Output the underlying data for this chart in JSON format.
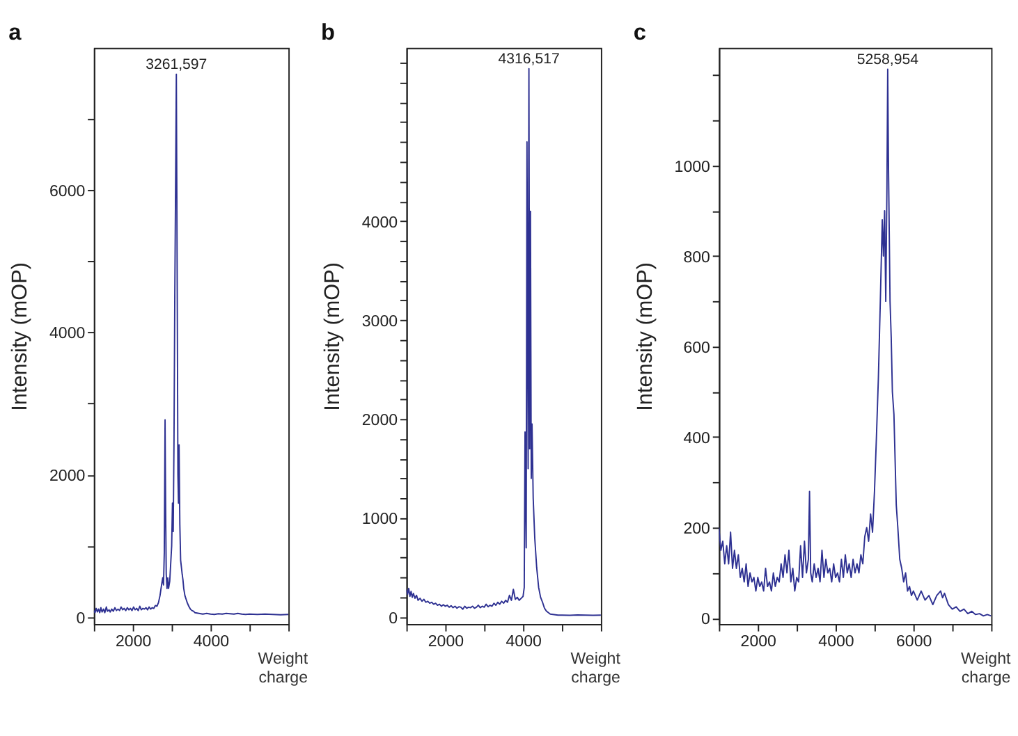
{
  "chart_data": [
    {
      "type": "line",
      "title": "a",
      "xlabel": "Weight charge",
      "ylabel": "Intensity (mOP)",
      "xlim": [
        1000,
        6000
      ],
      "xticks": [
        {
          "value": 1000,
          "label": null
        },
        2000,
        {
          "value": 3000,
          "label": null
        },
        4000,
        {
          "value": 5000,
          "label": null
        },
        {
          "value": 6000,
          "label": null
        }
      ],
      "ylim": [
        -100,
        8000
      ],
      "yticks": [
        0,
        {
          "value": 1000,
          "label": null
        },
        2000,
        {
          "value": 3000,
          "label": null
        },
        4000,
        {
          "value": 5000,
          "label": null
        },
        6000,
        {
          "value": 7000,
          "label": null
        }
      ],
      "annotations": [
        {
          "text": "3261,597",
          "x": 3120,
          "y": 7630
        }
      ],
      "series": [
        {
          "color": "#2e3192",
          "x": [
            1000,
            1030,
            1060,
            1090,
            1120,
            1150,
            1180,
            1210,
            1250,
            1280,
            1320,
            1350,
            1390,
            1420,
            1460,
            1500,
            1540,
            1580,
            1620,
            1660,
            1700,
            1740,
            1780,
            1820,
            1860,
            1900,
            1940,
            1980,
            2020,
            2060,
            2100,
            2140,
            2180,
            2220,
            2260,
            2300,
            2340,
            2380,
            2420,
            2460,
            2500,
            2540,
            2580,
            2620,
            2660,
            2700,
            2740,
            2770,
            2790,
            2810,
            2830,
            2845,
            2860,
            2880,
            2900,
            2920,
            2950,
            2980,
            3000,
            3020,
            3040,
            3060,
            3080,
            3100,
            3120,
            3140,
            3160,
            3175,
            3190,
            3210,
            3230,
            3250,
            3270,
            3290,
            3310,
            3340,
            3370,
            3400,
            3440,
            3480,
            3520,
            3560,
            3600,
            3700,
            3800,
            3900,
            4000,
            4100,
            4200,
            4300,
            4400,
            4500,
            4600,
            4700,
            4800,
            4900,
            5000,
            5200,
            5400,
            5600,
            5800,
            6000
          ],
          "values": [
            90,
            60,
            120,
            70,
            110,
            60,
            130,
            70,
            110,
            60,
            140,
            80,
            100,
            70,
            110,
            80,
            130,
            90,
            110,
            90,
            140,
            100,
            120,
            90,
            130,
            100,
            120,
            90,
            140,
            100,
            120,
            90,
            150,
            100,
            120,
            110,
            130,
            100,
            140,
            110,
            130,
            120,
            160,
            150,
            200,
            300,
            450,
            550,
            450,
            900,
            2770,
            1500,
            600,
            400,
            550,
            400,
            500,
            800,
            1000,
            1600,
            1200,
            2500,
            4500,
            6000,
            7630,
            5000,
            2000,
            1600,
            2420,
            1300,
            800,
            700,
            600,
            520,
            400,
            300,
            250,
            200,
            150,
            110,
            90,
            80,
            60,
            50,
            40,
            50,
            40,
            35,
            45,
            40,
            50,
            45,
            40,
            50,
            40,
            35,
            40,
            35,
            40,
            35,
            30,
            35
          ]
        }
      ]
    },
    {
      "type": "line",
      "title": "b",
      "xlabel": "Weight charge",
      "ylabel": "Intensity (mOP)",
      "xlim": [
        1000,
        6000
      ],
      "xticks": [
        {
          "value": 1000,
          "label": null
        },
        2000,
        {
          "value": 3000,
          "label": null
        },
        4000,
        {
          "value": 5000,
          "label": null
        },
        {
          "value": 6000,
          "label": null
        }
      ],
      "ylim": [
        -70,
        5750
      ],
      "yticks": [
        0,
        {
          "value": 200,
          "label": null
        },
        {
          "value": 400,
          "label": null
        },
        {
          "value": 600,
          "label": null
        },
        {
          "value": 800,
          "label": null
        },
        1000,
        {
          "value": 1200,
          "label": null
        },
        {
          "value": 1400,
          "label": null
        },
        {
          "value": 1600,
          "label": null
        },
        {
          "value": 1800,
          "label": null
        },
        2000,
        {
          "value": 2200,
          "label": null
        },
        {
          "value": 2400,
          "label": null
        },
        {
          "value": 2600,
          "label": null
        },
        {
          "value": 2800,
          "label": null
        },
        3000,
        {
          "value": 3200,
          "label": null
        },
        {
          "value": 3400,
          "label": null
        },
        {
          "value": 3600,
          "label": null
        },
        {
          "value": 3800,
          "label": null
        },
        4000,
        {
          "value": 4200,
          "label": null
        },
        {
          "value": 4400,
          "label": null
        },
        {
          "value": 4600,
          "label": null
        },
        {
          "value": 4800,
          "label": null
        },
        {
          "value": 5000,
          "label": null
        },
        {
          "value": 5200,
          "label": null
        },
        {
          "value": 5400,
          "label": null
        },
        {
          "value": 5600,
          "label": null
        }
      ],
      "annotations": [
        {
          "text": "4316,517",
          "x": 4150,
          "y": 5540
        }
      ],
      "series": [
        {
          "color": "#2e3192",
          "x": [
            1000,
            1030,
            1060,
            1090,
            1120,
            1150,
            1180,
            1220,
            1260,
            1300,
            1350,
            1400,
            1450,
            1500,
            1550,
            1600,
            1650,
            1700,
            1750,
            1800,
            1850,
            1900,
            1950,
            2000,
            2050,
            2100,
            2150,
            2200,
            2250,
            2300,
            2350,
            2400,
            2450,
            2500,
            2550,
            2600,
            2650,
            2700,
            2750,
            2800,
            2850,
            2900,
            2950,
            3000,
            3050,
            3100,
            3150,
            3200,
            3250,
            3300,
            3350,
            3400,
            3450,
            3500,
            3550,
            3600,
            3650,
            3700,
            3750,
            3800,
            3850,
            3900,
            3950,
            4000,
            4030,
            4050,
            4080,
            4100,
            4130,
            4150,
            4170,
            4190,
            4210,
            4230,
            4260,
            4300,
            4350,
            4400,
            4450,
            4500,
            4550,
            4600,
            4700,
            4800,
            4900,
            5000,
            5200,
            5400,
            5600,
            5800,
            6000
          ],
          "values": [
            280,
            230,
            290,
            210,
            260,
            200,
            240,
            190,
            220,
            170,
            190,
            160,
            180,
            150,
            160,
            140,
            150,
            130,
            140,
            120,
            130,
            110,
            125,
            110,
            120,
            100,
            115,
            95,
            110,
            90,
            105,
            100,
            80,
            110,
            90,
            100,
            95,
            110,
            90,
            100,
            120,
            95,
            110,
            100,
            130,
            105,
            120,
            110,
            140,
            120,
            150,
            130,
            160,
            140,
            170,
            150,
            220,
            170,
            280,
            180,
            200,
            170,
            190,
            210,
            300,
            1870,
            700,
            4800,
            1500,
            5540,
            1700,
            4100,
            1400,
            1950,
            1200,
            800,
            500,
            300,
            200,
            150,
            90,
            60,
            30,
            25,
            20,
            20,
            18,
            22,
            20,
            18,
            20
          ]
        }
      ]
    },
    {
      "type": "line",
      "title": "c",
      "xlabel": "Weight charge",
      "ylabel": "Intensity (mOP)",
      "xlim": [
        1000,
        8000
      ],
      "xticks": [
        {
          "value": 1000,
          "label": null
        },
        2000,
        {
          "value": 3000,
          "label": null
        },
        4000,
        {
          "value": 5000,
          "label": null
        },
        6000,
        {
          "value": 7000,
          "label": null
        },
        {
          "value": 8000,
          "label": null
        }
      ],
      "ylim": [
        -13,
        1260
      ],
      "yticks": [
        0,
        {
          "value": 100,
          "label": null
        },
        200,
        {
          "value": 300,
          "label": null
        },
        400,
        {
          "value": 500,
          "label": null
        },
        600,
        {
          "value": 700,
          "label": null
        },
        800,
        {
          "value": 900,
          "label": null
        },
        1000,
        {
          "value": 1100,
          "label": null
        },
        {
          "value": 1200,
          "label": null
        }
      ],
      "annotations": [
        {
          "text": "5258,954",
          "x": 5340,
          "y": 1213
        }
      ],
      "series": [
        {
          "color": "#2e3192",
          "x": [
            1000,
            1050,
            1100,
            1150,
            1200,
            1250,
            1300,
            1350,
            1400,
            1450,
            1500,
            1550,
            1600,
            1650,
            1700,
            1750,
            1800,
            1850,
            1900,
            1950,
            2000,
            2050,
            2100,
            2150,
            2200,
            2250,
            2300,
            2350,
            2400,
            2450,
            2500,
            2550,
            2600,
            2650,
            2700,
            2750,
            2800,
            2850,
            2900,
            2950,
            3000,
            3050,
            3100,
            3150,
            3200,
            3250,
            3300,
            3330,
            3360,
            3400,
            3450,
            3500,
            3550,
            3600,
            3650,
            3700,
            3750,
            3800,
            3850,
            3900,
            3950,
            4000,
            4050,
            4100,
            4150,
            4200,
            4250,
            4300,
            4350,
            4400,
            4450,
            4500,
            4550,
            4600,
            4650,
            4700,
            4750,
            4800,
            4850,
            4900,
            4950,
            5000,
            5050,
            5100,
            5150,
            5200,
            5230,
            5260,
            5290,
            5320,
            5340,
            5360,
            5380,
            5400,
            5430,
            5460,
            5500,
            5530,
            5560,
            5600,
            5650,
            5700,
            5750,
            5800,
            5850,
            5900,
            5950,
            6000,
            6100,
            6200,
            6300,
            6400,
            6500,
            6600,
            6700,
            6750,
            6800,
            6900,
            7000,
            7100,
            7200,
            7300,
            7400,
            7500,
            7600,
            7700,
            7800,
            7900,
            8000
          ],
          "values": [
            200,
            150,
            170,
            120,
            160,
            120,
            190,
            110,
            150,
            110,
            140,
            90,
            110,
            80,
            120,
            70,
            100,
            80,
            90,
            60,
            90,
            70,
            80,
            60,
            110,
            70,
            80,
            60,
            100,
            70,
            90,
            80,
            120,
            90,
            140,
            100,
            150,
            80,
            110,
            60,
            90,
            80,
            160,
            90,
            170,
            100,
            130,
            280,
            100,
            80,
            120,
            90,
            110,
            80,
            150,
            90,
            130,
            100,
            110,
            80,
            120,
            90,
            100,
            80,
            130,
            90,
            140,
            100,
            120,
            90,
            130,
            100,
            120,
            100,
            140,
            120,
            180,
            200,
            170,
            230,
            190,
            280,
            400,
            530,
            700,
            880,
            800,
            900,
            700,
            950,
            1213,
            1000,
            850,
            700,
            620,
            500,
            450,
            350,
            250,
            200,
            130,
            110,
            80,
            100,
            60,
            70,
            50,
            60,
            40,
            60,
            40,
            50,
            30,
            50,
            60,
            45,
            55,
            30,
            20,
            25,
            15,
            20,
            10,
            15,
            8,
            10,
            5,
            8,
            5
          ]
        }
      ]
    }
  ]
}
